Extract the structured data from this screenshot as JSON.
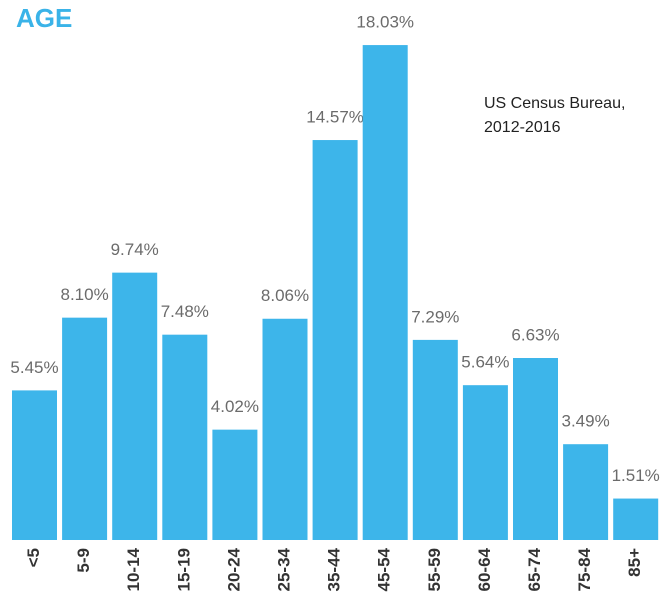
{
  "chart_data": {
    "type": "bar",
    "title": "AGE",
    "source": [
      "US Census Bureau,",
      "2012-2016"
    ],
    "categories": [
      "<5",
      "5-9",
      "10-14",
      "15-19",
      "20-24",
      "25-34",
      "35-44",
      "45-54",
      "55-59",
      "60-64",
      "65-74",
      "75-84",
      "85+"
    ],
    "values": [
      5.45,
      8.1,
      9.74,
      7.48,
      4.02,
      8.06,
      14.57,
      18.03,
      7.29,
      5.64,
      6.63,
      3.49,
      1.51
    ],
    "value_labels": [
      "5.45%",
      "8.10%",
      "9.74%",
      "7.48%",
      "4.02%",
      "8.06%",
      "14.57%",
      "18.03%",
      "7.29%",
      "5.64%",
      "6.63%",
      "3.49%",
      "1.51%"
    ],
    "color": "#3db5ea"
  }
}
